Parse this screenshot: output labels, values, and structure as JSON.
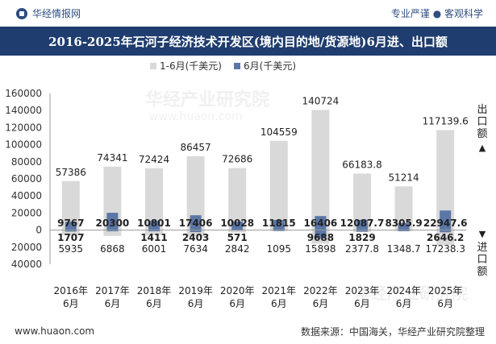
{
  "header": {
    "brand": "华经情报网",
    "slogan": "专业严谨 ● 客观科学",
    "title": "2016-2025年石河子经济技术开发区(境内目的地/货源地)6月进、出口额"
  },
  "footer": {
    "website": "www.huaon.com",
    "source": "数据来源：中国海关，华经产业研究院整理"
  },
  "colors": {
    "ytd_bar": "#d9d9d9",
    "month_bar": "#5b77a7",
    "title_bg": "#1f3d6e",
    "brand": "#2e4d80"
  },
  "chart_data": {
    "type": "bar",
    "title": "2016-2025年石河子经济技术开发区(境内目的地/货源地)6月进、出口额",
    "categories": [
      "2016年\n6月",
      "2017年\n6月",
      "2018年\n6月",
      "2019年\n6月",
      "2020年\n6月",
      "2021年\n6月",
      "2022年\n6月",
      "2023年\n6月",
      "2024年\n6月",
      "2025年\n6月"
    ],
    "series": [
      {
        "name": "1-6月(千美元)",
        "export": [
          57386,
          74341,
          72424,
          86457,
          72686,
          104559,
          140724,
          66183.8,
          51214,
          117139.6
        ],
        "import": [
          5935,
          6868,
          6001,
          7634,
          2842,
          1095,
          15898,
          2377.8,
          1348.7,
          17238.3
        ],
        "export_labels": [
          "57386",
          "74341",
          "72424",
          "86457",
          "72686",
          "104559",
          "140724",
          "66183.8",
          "51214",
          "117139.6"
        ],
        "import_labels": [
          "5935",
          "6868",
          "6001",
          "7634",
          "2842",
          "1095",
          "15898",
          "2377.8",
          "1348.7",
          "17238.3"
        ]
      },
      {
        "name": "6月(千美元)",
        "export": [
          9767,
          20300,
          10801,
          17406,
          10028,
          11815,
          16406,
          12087.7,
          8305.9,
          22947.6
        ],
        "import": [
          1707,
          1411,
          1411,
          2403,
          571,
          1095,
          9688,
          1829,
          1348.7,
          2646.2
        ],
        "export_labels": [
          "9767",
          "20300",
          "10801",
          "17406",
          "10028",
          "11815",
          "16406",
          "12087.7",
          "8305.9",
          "22947.6"
        ],
        "import_labels": [
          "1707",
          "",
          "1411",
          "2403",
          "571",
          "",
          "9688",
          "1829",
          "",
          "2646.2"
        ]
      }
    ],
    "ylim": [
      -40000,
      160000
    ],
    "yticks": [
      160000,
      140000,
      120000,
      100000,
      80000,
      60000,
      40000,
      20000,
      0,
      -20000,
      -40000
    ],
    "ytick_labels": [
      "160000",
      "140000",
      "120000",
      "100000",
      "80000",
      "60000",
      "40000",
      "20000",
      "0",
      "20000",
      "40000"
    ],
    "right_label_top": "出口额",
    "right_label_bottom": "进口额",
    "arrow_up": "▲",
    "arrow_down": "▼",
    "legend_position": "top-center",
    "watermark": "华经产业研究院",
    "watermark_url": "www.huaon.com"
  }
}
